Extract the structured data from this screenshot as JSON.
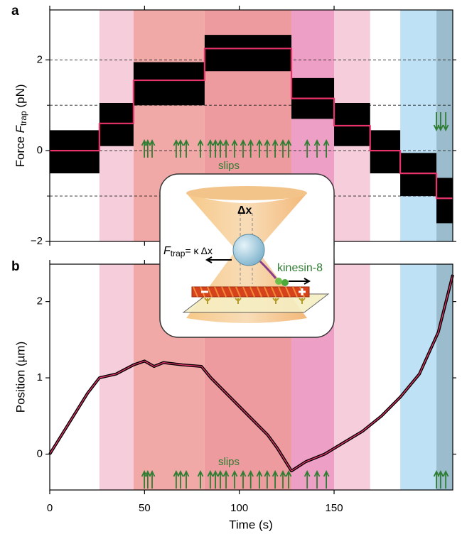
{
  "chart_data": [
    {
      "type": "line",
      "panel": "a",
      "y_label": {
        "prefix": "Force ",
        "symbol": "F",
        "subscript": "trap",
        "unit": " (pN)"
      },
      "xlim": [
        0,
        212.6
      ],
      "ylim": [
        -2,
        3.1
      ],
      "yticks": [
        {
          "value": -2,
          "label": "−2"
        },
        0,
        2
      ],
      "yminor_ticks": [
        -1,
        1
      ],
      "grid": true,
      "regions": [
        {
          "start": 26.2,
          "end": 44.2,
          "color": "#f6cddb"
        },
        {
          "start": 44.2,
          "end": 81.7,
          "color": "#f1a9a7"
        },
        {
          "start": 81.7,
          "end": 127.5,
          "color": "#ed9b9f"
        },
        {
          "start": 127.5,
          "end": 150,
          "color": "#ee9fc6"
        },
        {
          "start": 150,
          "end": 169,
          "color": "#f6cddb"
        },
        {
          "start": 184.9,
          "end": 204,
          "color": "#bfe1f5"
        },
        {
          "start": 204,
          "end": 212.6,
          "color": "#9bbccd"
        }
      ],
      "x": [
        0,
        26.2,
        26.2,
        44.2,
        44.2,
        81.7,
        81.7,
        127.5,
        127.5,
        150,
        150,
        169,
        169,
        184.9,
        184.9,
        204,
        204,
        212.6
      ],
      "series": [
        {
          "color": "#e8336b",
          "values": [
            0,
            0,
            0.6,
            0.6,
            1.55,
            1.55,
            2.25,
            2.25,
            1.15,
            1.15,
            0.55,
            0.55,
            0,
            0,
            -0.5,
            -0.5,
            -1.05,
            -1.05
          ]
        }
      ],
      "band": {
        "color": "#000000",
        "upper": [
          0.45,
          0.45,
          1.05,
          1.05,
          1.95,
          1.95,
          2.55,
          2.55,
          1.6,
          1.6,
          1.05,
          1.05,
          0.45,
          0.45,
          -0.05,
          -0.05,
          -0.6,
          -0.6
        ],
        "lower": [
          -0.5,
          -0.5,
          0.1,
          0.1,
          1.0,
          1.0,
          1.75,
          1.75,
          0.7,
          0.7,
          0.1,
          0.1,
          -0.5,
          -0.5,
          -1.0,
          -1.0,
          -1.6,
          -1.6
        ]
      },
      "annotation": "slips",
      "arrow_color": "#2f7d32",
      "slips_up": [
        49.9,
        51.7,
        54,
        66.7,
        69,
        72,
        79.5,
        84.7,
        87.4,
        90,
        93,
        97.5,
        102,
        106,
        110.6,
        114.7,
        118.9,
        123,
        126,
        135.8,
        141,
        145.9
      ],
      "slips_down": [
        204,
        206.2,
        208.9
      ]
    },
    {
      "type": "line",
      "panel": "b",
      "y_label": "Position (µm)",
      "x_label": "Time (s)",
      "xlim": [
        0,
        212.6
      ],
      "xticks": [
        0,
        50,
        100,
        150
      ],
      "ylim": [
        -0.47,
        2.49
      ],
      "yticks": [
        0,
        1,
        2
      ],
      "x": [
        0,
        10,
        20,
        26.2,
        35,
        44.2,
        50,
        55,
        60,
        70,
        80,
        85,
        95,
        105,
        115,
        120,
        127.5,
        135,
        145,
        155,
        165,
        175,
        185,
        195,
        205,
        212.6
      ],
      "series": [
        {
          "color": "#e8336b",
          "values": [
            0,
            0.4,
            0.8,
            1.0,
            1.05,
            1.17,
            1.22,
            1.15,
            1.2,
            1.17,
            1.15,
            1.0,
            0.75,
            0.5,
            0.25,
            0.08,
            -0.22,
            -0.1,
            0.0,
            0.15,
            0.3,
            0.5,
            0.75,
            1.05,
            1.6,
            2.35
          ]
        }
      ],
      "annotation": "slips",
      "slips_up": [
        49.9,
        51.7,
        54,
        66.7,
        69,
        72,
        79.5,
        84.7,
        87.4,
        90,
        93,
        97.5,
        102,
        106,
        110.6,
        114.7,
        118.9,
        123,
        126,
        135.8,
        141,
        145.9,
        204,
        206.2,
        208.9
      ]
    }
  ],
  "inset": {
    "displacement": "Δx",
    "force_symbol": "F",
    "force_subscript": "trap",
    "force_rhs": "= κ Δx",
    "motor": "kinesin-8"
  }
}
